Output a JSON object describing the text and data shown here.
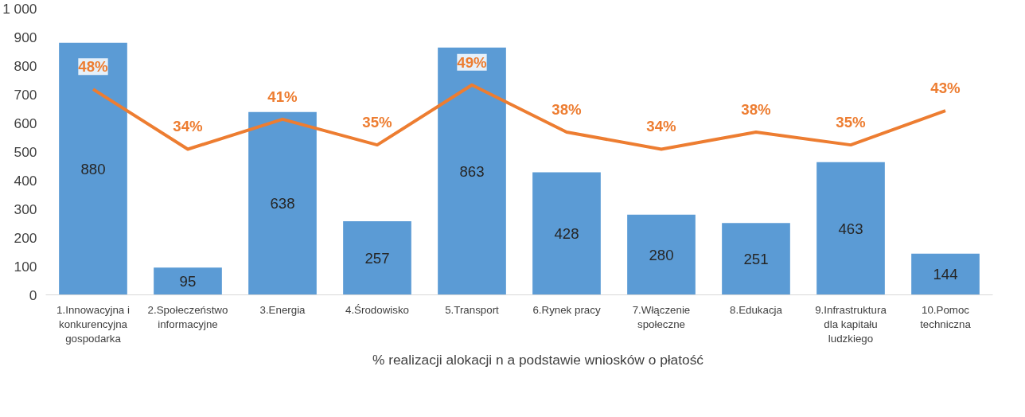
{
  "chart_data": {
    "type": "bar",
    "categories": [
      "1.Innowacyjna i konkurencyjna gospodarka",
      "2.Społeczeństwo informacyjne",
      "3.Energia",
      "4.Środowisko",
      "5.Transport",
      "6.Rynek pracy",
      "7.Włączenie społeczne",
      "8.Edukacja",
      "9.Infrastruktura dla kapitału ludzkiego",
      "10.Pomoc techniczna"
    ],
    "series": [
      {
        "color": "#5b9bd5",
        "values": [
          880,
          95,
          638,
          257,
          863,
          428,
          280,
          251,
          463,
          144
        ],
        "value_labels": [
          "880",
          "95",
          "638",
          "257",
          "863",
          "428",
          "280",
          "251",
          "463",
          "144"
        ]
      },
      {
        "type": "line",
        "axis": "y2",
        "name": "% realizacji alokacji n a podstawie wniosków o płatość",
        "color": "#ed7d31",
        "values": [
          48,
          34,
          41,
          35,
          49,
          38,
          34,
          38,
          35,
          43
        ],
        "value_labels": [
          "48%",
          "34%",
          "41%",
          "35%",
          "49%",
          "38%",
          "34%",
          "38%",
          "35%",
          "43%"
        ]
      }
    ],
    "ylim": [
      0,
      1000
    ],
    "yticks": [
      0,
      100,
      200,
      300,
      400,
      500,
      600,
      700,
      800,
      {
        "value": 1000,
        "label": "1 000"
      },
      900
    ],
    "tick_labels": "xy",
    "grid": false,
    "legend": "bottom",
    "marker": "none",
    "line_style": "solid"
  }
}
